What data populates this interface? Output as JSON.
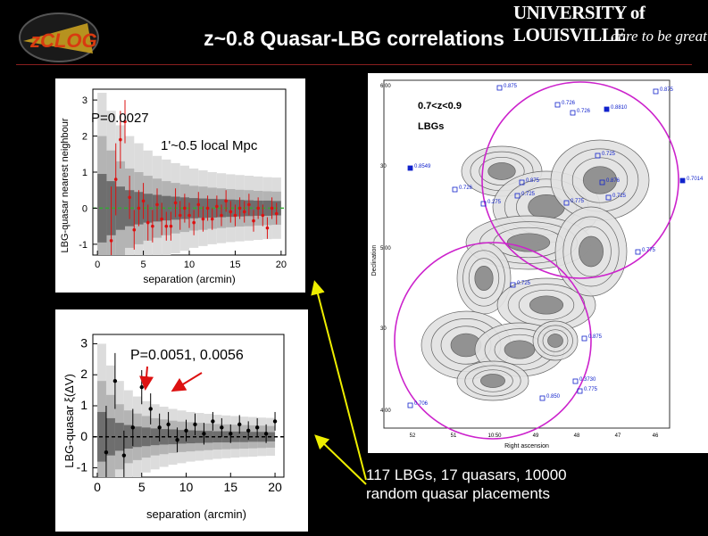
{
  "header": {
    "title": "z~0.8 Quasar-LBG correlations",
    "logo_text": "zCLOG",
    "university": "UNIVERSITY of LOUISVILLE",
    "tagline": "dare to be great"
  },
  "caption": {
    "line1": "117 LBGs, 17 quasars, 10000",
    "line2": "random quasar placements"
  },
  "colors": {
    "title": "#ffffff",
    "p_label": "#cc2222",
    "data_points_top": "#dd1111",
    "green_line": "#33aa33",
    "circle": "#cc22cc",
    "lbg_marker": "#1122cc",
    "arrows": "#eeee00"
  },
  "chart_data": [
    {
      "type": "scatter",
      "title": "",
      "xlabel": "separation (arcmin)",
      "ylabel": "LBG-quasar nearest neighbour",
      "xlim": [
        -0.5,
        20.5
      ],
      "ylim": [
        -1.3,
        3.3
      ],
      "xticks": [
        0,
        5,
        10,
        15,
        20
      ],
      "yticks": [
        -1,
        0,
        1,
        2,
        3
      ],
      "annotations": [
        "P=0.0027",
        "1'~0.5 local Mpc"
      ],
      "reference_line": 0,
      "points": {
        "x": [
          1.5,
          2.0,
          2.5,
          3.0,
          3.5,
          4.0,
          4.5,
          5.0,
          5.5,
          6.0,
          6.5,
          7.0,
          7.5,
          8.0,
          8.5,
          9.0,
          9.5,
          10.0,
          10.5,
          11.0,
          11.5,
          12.0,
          12.5,
          13.0,
          13.5,
          14.0,
          14.5,
          15.0,
          15.5,
          16.0,
          16.5,
          17.0,
          17.5,
          18.0,
          18.5,
          19.0,
          19.5
        ],
        "y": [
          -0.9,
          0.8,
          1.9,
          2.4,
          0.3,
          -0.6,
          0.0,
          0.2,
          -0.4,
          -0.5,
          0.1,
          -0.3,
          -0.5,
          -0.5,
          0.15,
          -0.2,
          0.0,
          -0.2,
          -0.4,
          0.1,
          -0.3,
          0.0,
          -0.3,
          0.05,
          -0.2,
          0.2,
          -0.1,
          -0.2,
          0.0,
          -0.1,
          0.1,
          -0.35,
          0.0,
          -0.2,
          -0.55,
          0.0,
          -0.15
        ],
        "err": [
          1.5,
          1.0,
          0.8,
          0.6,
          0.6,
          0.55,
          0.5,
          0.5,
          0.5,
          0.45,
          0.45,
          0.45,
          0.4,
          0.4,
          0.4,
          0.4,
          0.4,
          0.35,
          0.35,
          0.35,
          0.35,
          0.35,
          0.3,
          0.3,
          0.3,
          0.3,
          0.3,
          0.3,
          0.3,
          0.3,
          0.3,
          0.3,
          0.3,
          0.3,
          0.3,
          0.3,
          0.3
        ]
      },
      "bands": {
        "x": [
          0,
          1,
          2,
          3,
          4,
          5,
          6,
          7,
          8,
          9,
          10,
          11,
          12,
          13,
          14,
          15,
          16,
          17,
          18,
          19,
          20
        ],
        "inner": [
          0.95,
          0.75,
          0.6,
          0.5,
          0.45,
          0.4,
          0.37,
          0.34,
          0.32,
          0.3,
          0.28,
          0.27,
          0.26,
          0.25,
          0.24,
          0.23,
          0.22,
          0.21,
          0.21,
          0.2,
          0.2
        ],
        "mid": [
          2.0,
          1.6,
          1.3,
          1.1,
          1.0,
          0.9,
          0.82,
          0.75,
          0.7,
          0.66,
          0.62,
          0.6,
          0.57,
          0.55,
          0.53,
          0.51,
          0.5,
          0.48,
          0.47,
          0.46,
          0.45
        ],
        "outer": [
          3.2,
          2.7,
          2.3,
          2.0,
          1.8,
          1.6,
          1.45,
          1.35,
          1.25,
          1.18,
          1.1,
          1.05,
          1.0,
          0.97,
          0.94,
          0.92,
          0.9,
          0.88,
          0.86,
          0.85,
          0.84
        ]
      }
    },
    {
      "type": "scatter",
      "title": "",
      "xlabel": "separation (arcmin)",
      "ylabel": "LBG-quasar ξ(ΔV)",
      "xlim": [
        -0.5,
        21
      ],
      "ylim": [
        -1.3,
        3.3
      ],
      "xticks": [
        0,
        5,
        10,
        15,
        20
      ],
      "yticks": [
        -1,
        0,
        1,
        2,
        3
      ],
      "annotations": [
        "P=0.0051, 0.0056"
      ],
      "reference_line": 0,
      "points": {
        "x": [
          1.0,
          2.0,
          3.0,
          4.0,
          5.0,
          6.0,
          7.0,
          8.0,
          9.0,
          10.0,
          11.0,
          12.0,
          13.0,
          14.0,
          15.0,
          16.0,
          17.0,
          18.0,
          19.0,
          20.0
        ],
        "y": [
          -0.5,
          1.8,
          -0.6,
          0.3,
          1.6,
          0.9,
          0.3,
          0.4,
          -0.1,
          0.2,
          0.4,
          0.1,
          0.5,
          0.3,
          0.1,
          0.4,
          0.2,
          0.3,
          0.1,
          0.5
        ],
        "err": [
          1.5,
          0.9,
          0.8,
          0.6,
          0.55,
          0.5,
          0.45,
          0.4,
          0.4,
          0.35,
          0.35,
          0.35,
          0.3,
          0.3,
          0.3,
          0.3,
          0.3,
          0.3,
          0.3,
          0.3
        ]
      },
      "bands": {
        "x": [
          0,
          1,
          2,
          3,
          4,
          5,
          6,
          7,
          8,
          9,
          10,
          11,
          12,
          13,
          14,
          15,
          16,
          17,
          18,
          19,
          20
        ],
        "inner": [
          0.8,
          0.6,
          0.45,
          0.38,
          0.33,
          0.3,
          0.27,
          0.25,
          0.24,
          0.22,
          0.21,
          0.2,
          0.19,
          0.18,
          0.18,
          0.17,
          0.17,
          0.16,
          0.16,
          0.15,
          0.15
        ],
        "mid": [
          1.8,
          1.35,
          1.05,
          0.85,
          0.75,
          0.67,
          0.6,
          0.56,
          0.52,
          0.49,
          0.47,
          0.45,
          0.43,
          0.41,
          0.4,
          0.39,
          0.38,
          0.37,
          0.36,
          0.35,
          0.35
        ],
        "outer": [
          3.0,
          2.3,
          1.8,
          1.5,
          1.3,
          1.15,
          1.05,
          0.97,
          0.9,
          0.85,
          0.8,
          0.77,
          0.74,
          0.71,
          0.69,
          0.67,
          0.65,
          0.64,
          0.62,
          0.61,
          0.6
        ]
      }
    },
    {
      "type": "scatter",
      "title": "0.7<z<0.9",
      "subtitle": "LBGs",
      "xlabel": "Right ascension",
      "ylabel": "Declination",
      "xticks": [
        "52",
        "51",
        "10:50",
        "49",
        "48",
        "47",
        "46"
      ],
      "yticks": [
        "6:00",
        "30",
        "5:00",
        "30",
        "4:00"
      ],
      "quasar_labels": [
        "0.875",
        "0.875",
        "0.726",
        "0.726",
        "0.8810",
        "0.8549",
        "0.725",
        "0.726",
        "0.7014",
        "0.875",
        "0.876",
        "0.725",
        "0.775",
        "0.725",
        "0.275",
        "0.775",
        "0.725",
        "0.875",
        "0.3730",
        "0.775",
        "0.850",
        "0.706"
      ]
    }
  ]
}
